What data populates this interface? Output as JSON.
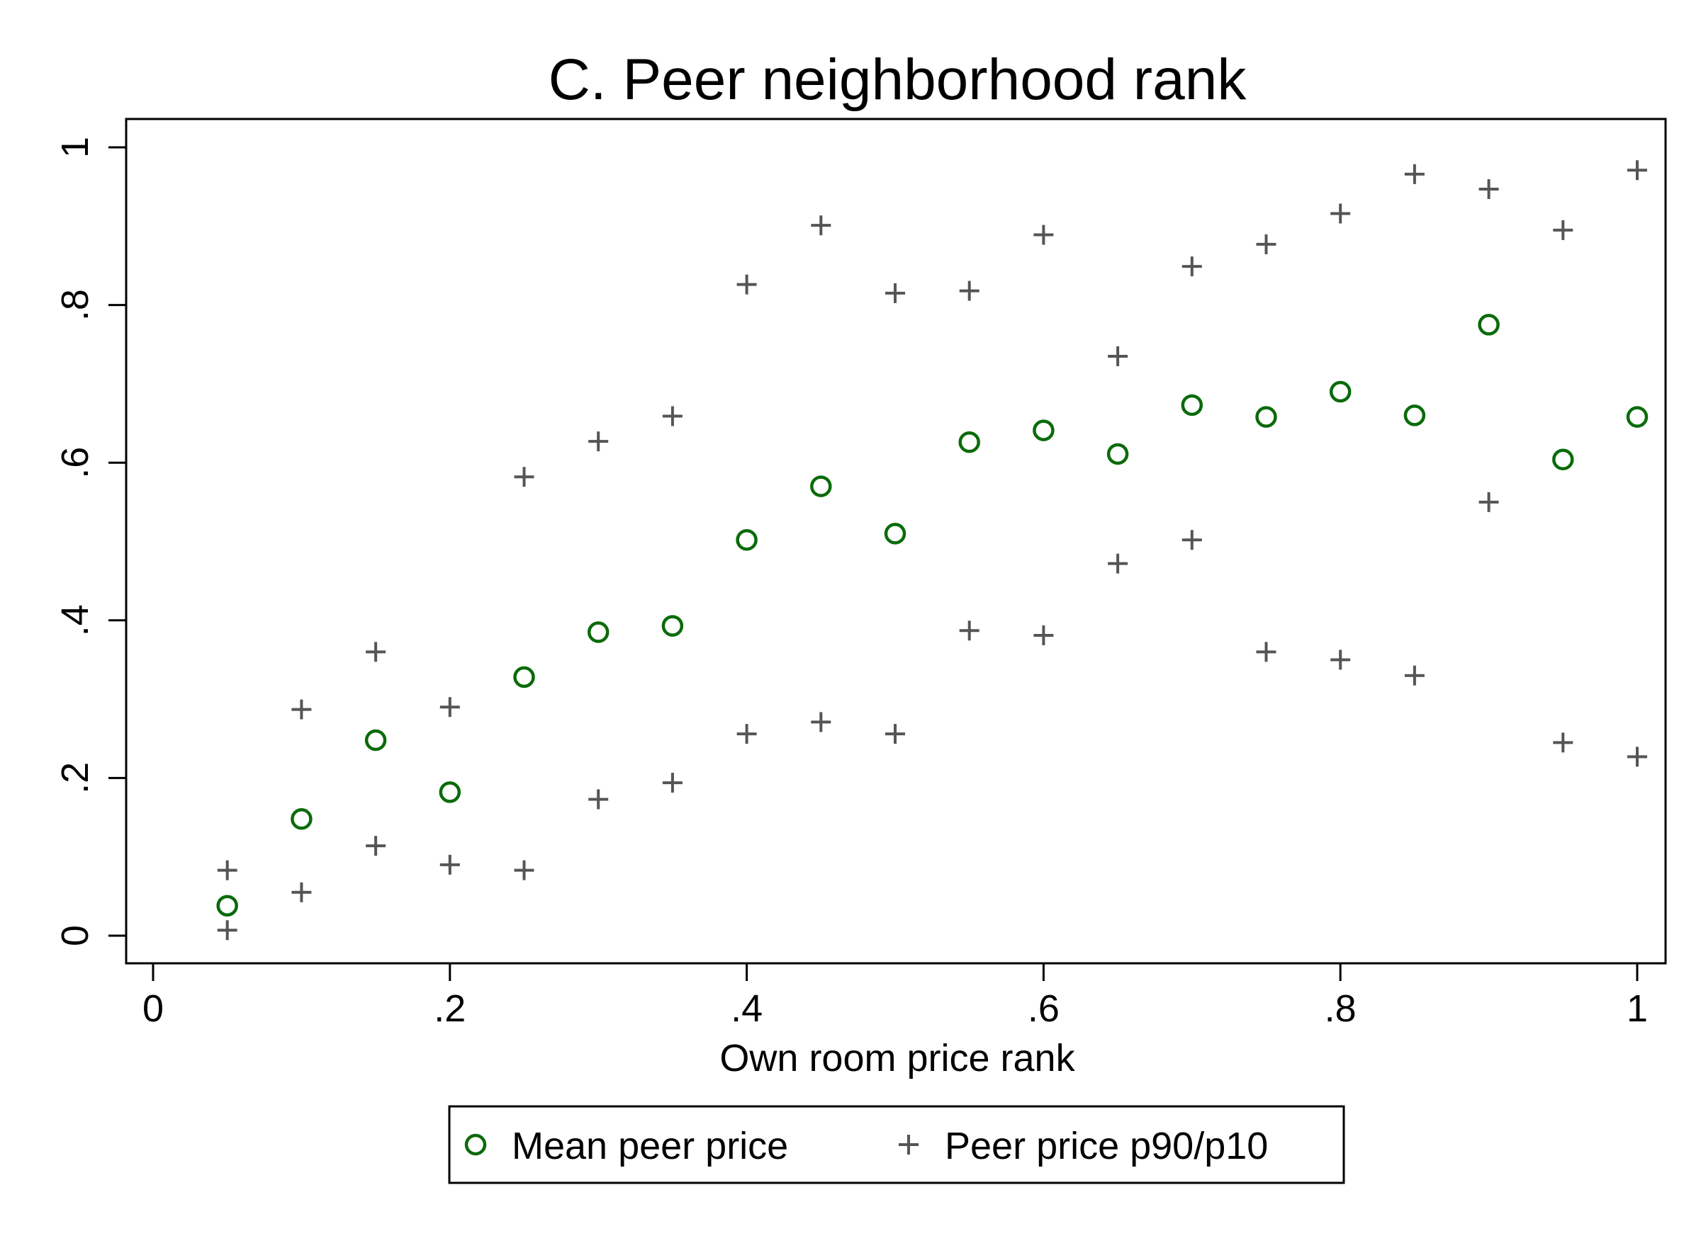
{
  "chart_data": {
    "type": "scatter",
    "title": "C. Peer neighborhood rank",
    "xlabel": "Own room price rank",
    "ylabel": "",
    "xlim": [
      0,
      1
    ],
    "ylim": [
      0,
      1
    ],
    "xticks": [
      {
        "value": 0,
        "label": "0"
      },
      {
        "value": 0.2,
        "label": ".2"
      },
      {
        "value": 0.4,
        "label": ".4"
      },
      {
        "value": 0.6,
        "label": ".6"
      },
      {
        "value": 0.8,
        "label": ".8"
      },
      {
        "value": 1,
        "label": "1"
      }
    ],
    "yticks": [
      {
        "value": 0,
        "label": "0"
      },
      {
        "value": 0.2,
        "label": ".2"
      },
      {
        "value": 0.4,
        "label": ".4"
      },
      {
        "value": 0.6,
        "label": ".6"
      },
      {
        "value": 0.8,
        "label": ".8"
      },
      {
        "value": 1,
        "label": "1"
      }
    ],
    "grid": false,
    "legend_position": "bottom",
    "series": [
      {
        "name": "Mean peer price",
        "marker": "circle",
        "color": "#0a6b0a",
        "points": [
          [
            0.05,
            0.038
          ],
          [
            0.1,
            0.148
          ],
          [
            0.15,
            0.248
          ],
          [
            0.2,
            0.182
          ],
          [
            0.25,
            0.328
          ],
          [
            0.3,
            0.385
          ],
          [
            0.35,
            0.393
          ],
          [
            0.4,
            0.502
          ],
          [
            0.45,
            0.57
          ],
          [
            0.5,
            0.51
          ],
          [
            0.55,
            0.626
          ],
          [
            0.6,
            0.641
          ],
          [
            0.65,
            0.611
          ],
          [
            0.7,
            0.673
          ],
          [
            0.75,
            0.658
          ],
          [
            0.8,
            0.69
          ],
          [
            0.85,
            0.66
          ],
          [
            0.9,
            0.775
          ],
          [
            0.95,
            0.604
          ],
          [
            1.0,
            0.658
          ]
        ]
      },
      {
        "name": "Peer price p90/p10",
        "marker": "plus",
        "color": "#555555",
        "points": [
          [
            0.05,
            0.083
          ],
          [
            0.1,
            0.287
          ],
          [
            0.15,
            0.36
          ],
          [
            0.2,
            0.29
          ],
          [
            0.25,
            0.582
          ],
          [
            0.3,
            0.627
          ],
          [
            0.35,
            0.659
          ],
          [
            0.4,
            0.826
          ],
          [
            0.45,
            0.901
          ],
          [
            0.5,
            0.815
          ],
          [
            0.55,
            0.818
          ],
          [
            0.6,
            0.889
          ],
          [
            0.65,
            0.735
          ],
          [
            0.7,
            0.849
          ],
          [
            0.75,
            0.877
          ],
          [
            0.8,
            0.916
          ],
          [
            0.85,
            0.966
          ],
          [
            0.9,
            0.947
          ],
          [
            0.95,
            0.895
          ],
          [
            1.0,
            0.971
          ],
          [
            0.05,
            0.007
          ],
          [
            0.1,
            0.055
          ],
          [
            0.15,
            0.114
          ],
          [
            0.2,
            0.09
          ],
          [
            0.25,
            0.083
          ],
          [
            0.3,
            0.173
          ],
          [
            0.35,
            0.194
          ],
          [
            0.4,
            0.256
          ],
          [
            0.45,
            0.271
          ],
          [
            0.5,
            0.256
          ],
          [
            0.55,
            0.387
          ],
          [
            0.6,
            0.381
          ],
          [
            0.65,
            0.472
          ],
          [
            0.7,
            0.502
          ],
          [
            0.75,
            0.36
          ],
          [
            0.8,
            0.35
          ],
          [
            0.85,
            0.33
          ],
          [
            0.9,
            0.55
          ],
          [
            0.95,
            0.245
          ],
          [
            1.0,
            0.227
          ]
        ]
      }
    ]
  }
}
